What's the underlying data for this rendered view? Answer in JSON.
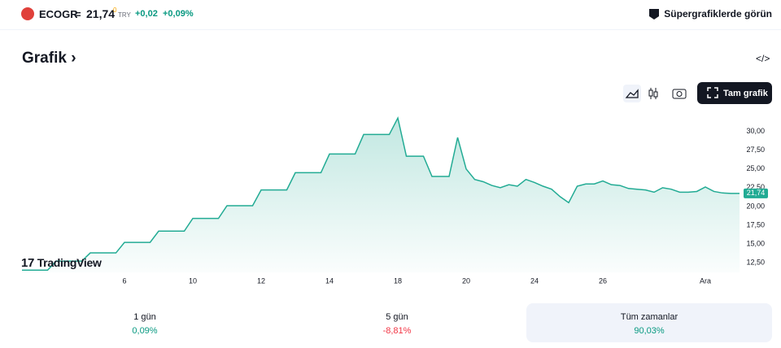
{
  "header": {
    "ticker": "ECOGR",
    "price": "21,74",
    "price_suffix": "0",
    "currency": "TRY",
    "change": "+0,02",
    "change_percent": "+0,09%",
    "supercharts_link": "Süpergrafiklerde görün"
  },
  "section_title": "Grafik",
  "full_chart_button": "Tam grafik",
  "watermark": "TradingView",
  "chart_data": {
    "type": "area",
    "color": "#22ab94",
    "categories": [
      null,
      null,
      null,
      null,
      null,
      null,
      null,
      null,
      null,
      null,
      null,
      null,
      "6",
      null,
      null,
      null,
      null,
      null,
      null,
      null,
      "10",
      null,
      null,
      null,
      null,
      null,
      null,
      null,
      "12",
      null,
      null,
      null,
      null,
      null,
      null,
      null,
      "14",
      null,
      null,
      null,
      null,
      null,
      null,
      null,
      "18",
      null,
      null,
      null,
      null,
      null,
      null,
      null,
      "20",
      null,
      null,
      null,
      null,
      null,
      null,
      null,
      "24",
      null,
      null,
      null,
      null,
      null,
      null,
      null,
      "26",
      null,
      null,
      null,
      null,
      null,
      null,
      null,
      null,
      null,
      null,
      null,
      "Ara",
      null,
      null,
      null,
      null
    ],
    "values": [
      11.5,
      11.5,
      11.5,
      11.5,
      12.7,
      12.7,
      12.7,
      12.7,
      13.8,
      13.8,
      13.8,
      13.8,
      15.2,
      15.2,
      15.2,
      15.2,
      16.7,
      16.7,
      16.7,
      16.7,
      18.4,
      18.4,
      18.4,
      18.4,
      20.1,
      20.1,
      20.1,
      20.1,
      22.2,
      22.2,
      22.2,
      22.2,
      24.5,
      24.5,
      24.5,
      24.5,
      27.0,
      27.0,
      27.0,
      27.0,
      29.6,
      29.6,
      29.6,
      29.6,
      31.8,
      26.7,
      26.7,
      26.7,
      24.0,
      24.0,
      24.0,
      29.2,
      25.0,
      23.6,
      23.3,
      22.8,
      22.5,
      22.9,
      22.7,
      23.6,
      23.2,
      22.7,
      22.3,
      21.3,
      20.5,
      22.7,
      23.0,
      23.0,
      23.4,
      22.9,
      22.8,
      22.4,
      22.3,
      22.2,
      21.9,
      22.5,
      22.3,
      21.9,
      21.9,
      22.0,
      22.6,
      22.0,
      21.8,
      21.74,
      21.74
    ],
    "ylim": [
      11.2,
      32.9
    ],
    "yticks": [
      {
        "value": 12.5,
        "label": "12,50"
      },
      {
        "value": 15,
        "label": "15,00"
      },
      {
        "value": 17.5,
        "label": "17,50"
      },
      {
        "value": 20,
        "label": "20,00"
      },
      {
        "value": 22.5,
        "label": "22,50"
      },
      {
        "value": 25,
        "label": "25,00"
      },
      {
        "value": 27.5,
        "label": "27,50"
      },
      {
        "value": 30,
        "label": "30,00"
      }
    ],
    "last_price": {
      "value": 21.74,
      "label": "21,74"
    }
  },
  "periods": [
    {
      "name": "1 gün",
      "value": "0,09%",
      "color": "#089981"
    },
    {
      "name": "5 gün",
      "value": "-8,81%",
      "color": "#f23645"
    },
    {
      "name": "Tüm zamanlar",
      "value": "90,03%",
      "color": "#089981"
    }
  ]
}
